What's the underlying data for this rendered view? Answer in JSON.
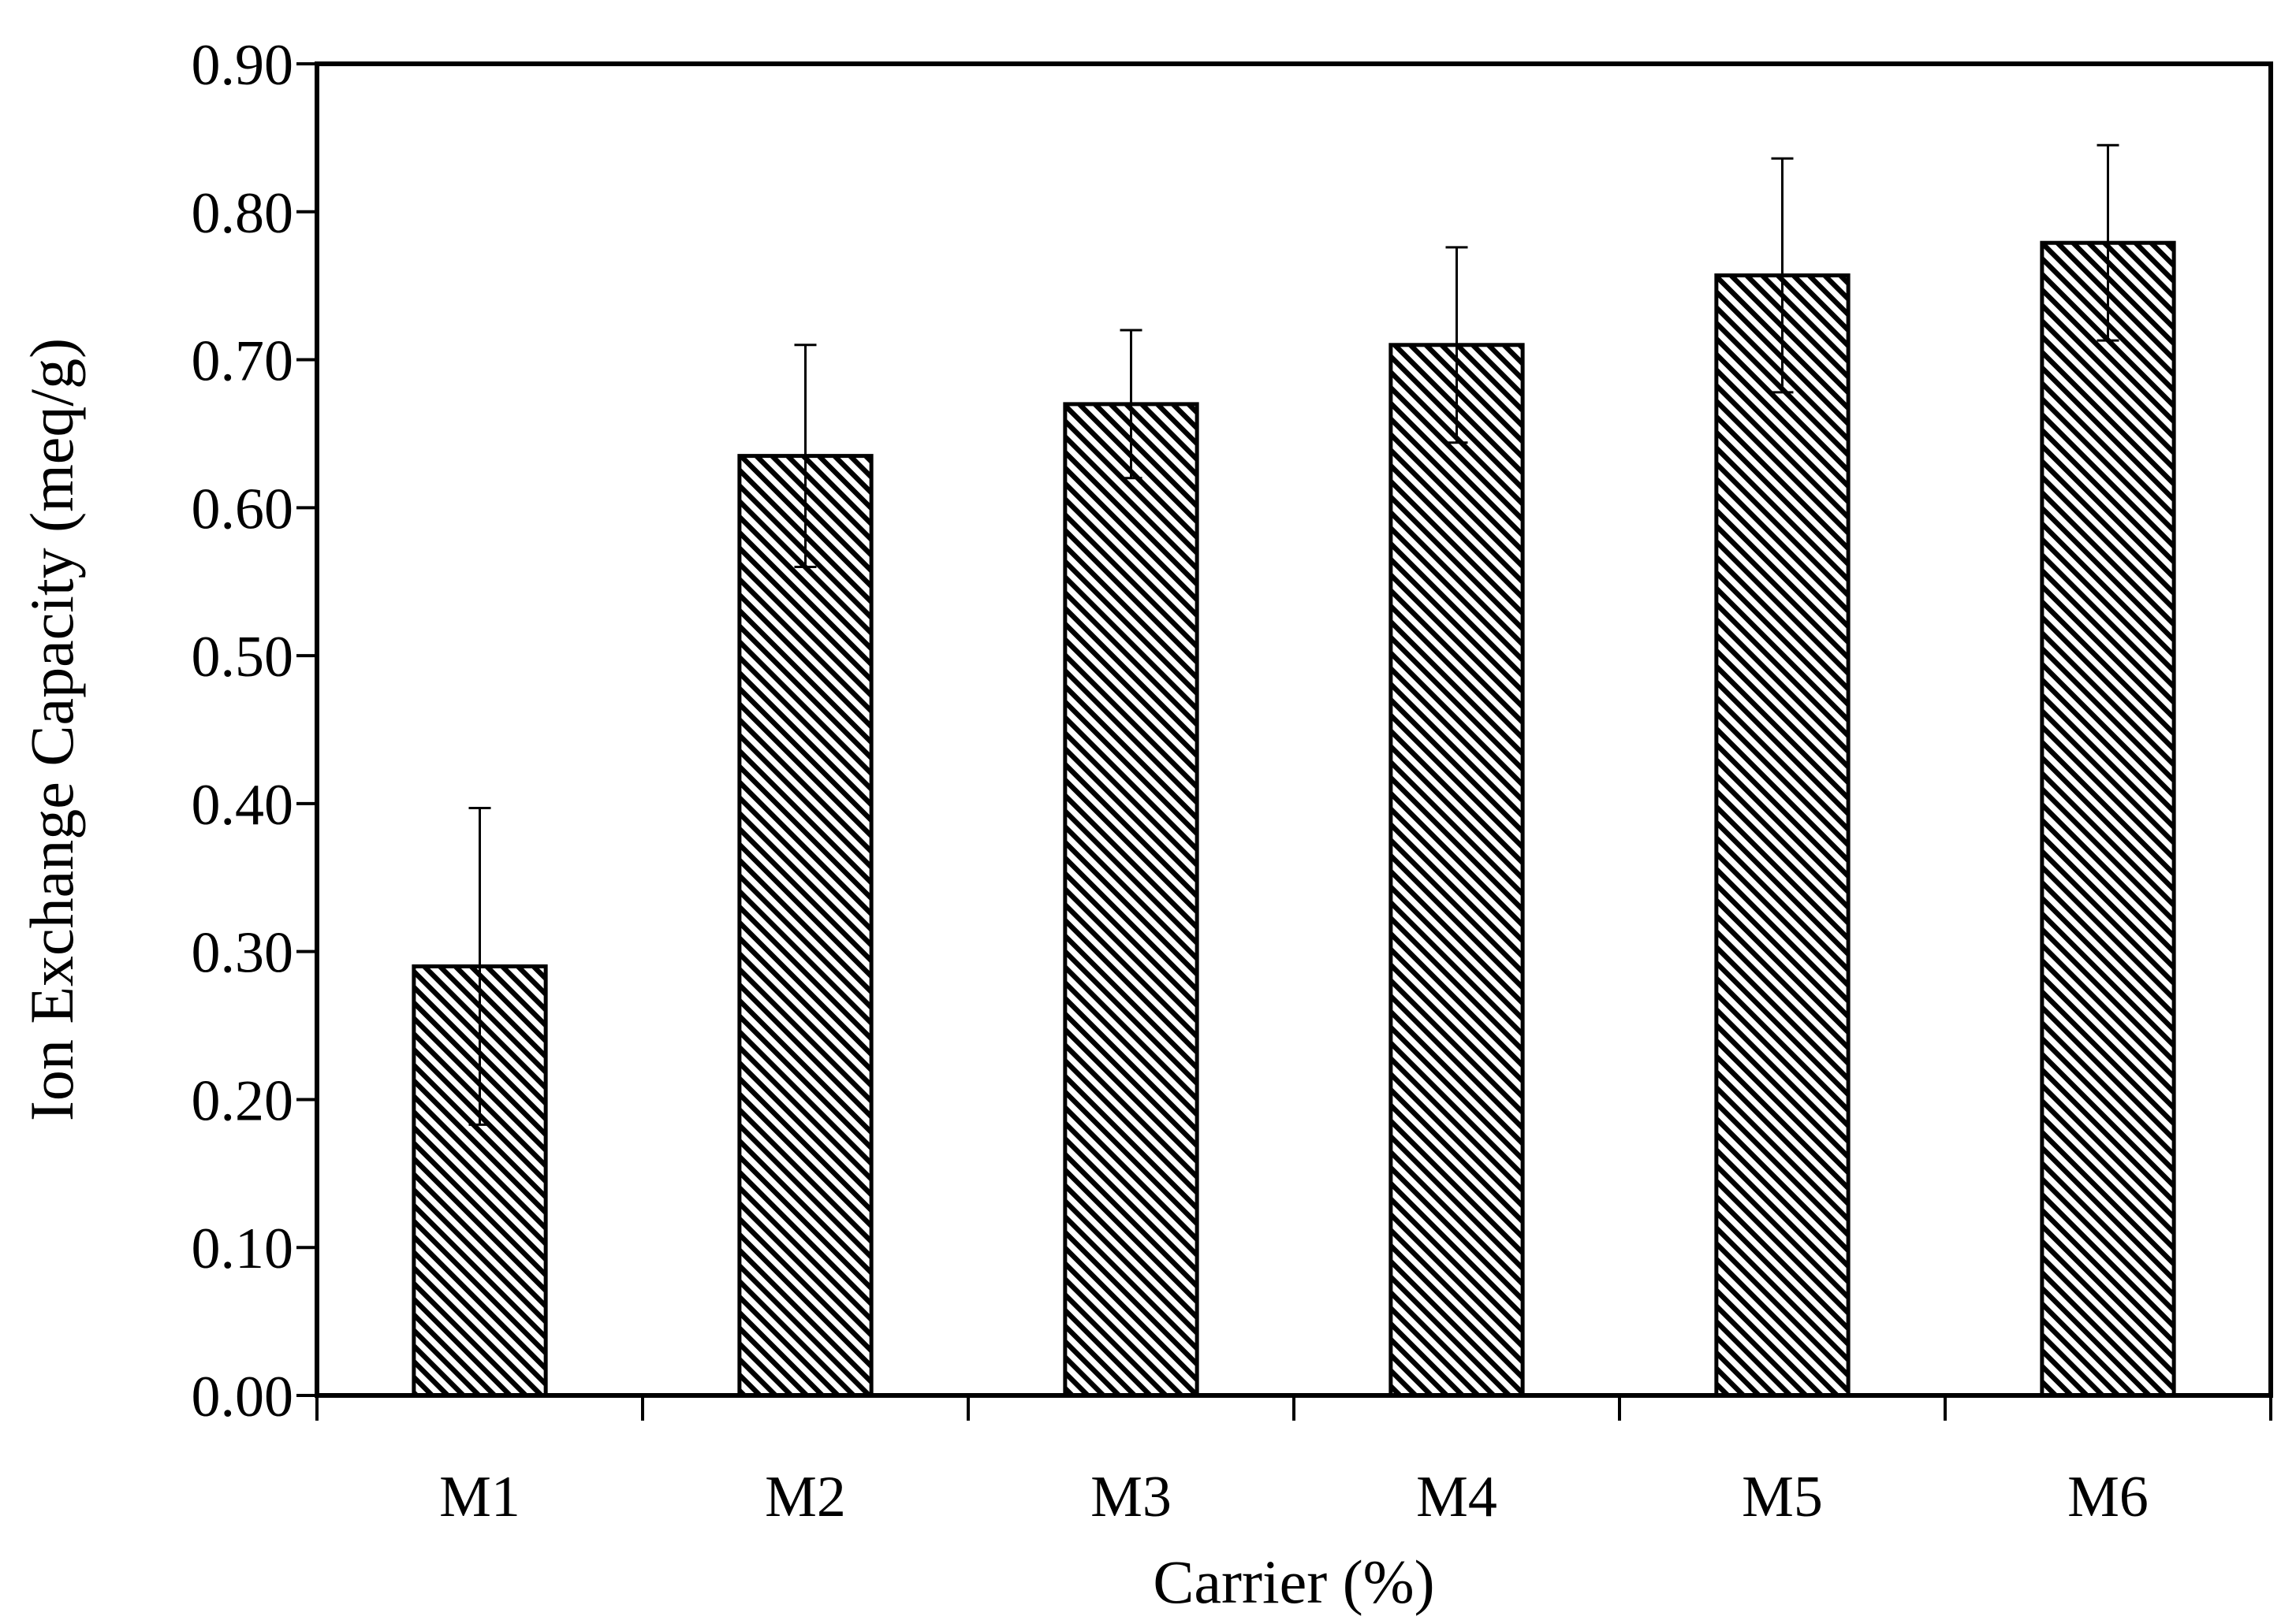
{
  "chart_data": {
    "type": "bar",
    "title": "",
    "xlabel": "Carrier (%)",
    "ylabel": "Ion Exchange Capacity (meq/g)",
    "categories": [
      "M1",
      "M2",
      "M3",
      "M4",
      "M5",
      "M6"
    ],
    "values": [
      0.29,
      0.635,
      0.67,
      0.71,
      0.757,
      0.779
    ],
    "errors": [
      0.107,
      0.075,
      0.05,
      0.066,
      0.079,
      0.066
    ],
    "ylim": [
      0,
      0.9
    ],
    "yticks": [
      "0.00",
      "0.10",
      "0.20",
      "0.30",
      "0.40",
      "0.50",
      "0.60",
      "0.70",
      "0.80",
      "0.90"
    ],
    "grid": false,
    "bar_fill": "diagonal-hatch",
    "bar_color": "#000000",
    "background": "#ffffff"
  }
}
